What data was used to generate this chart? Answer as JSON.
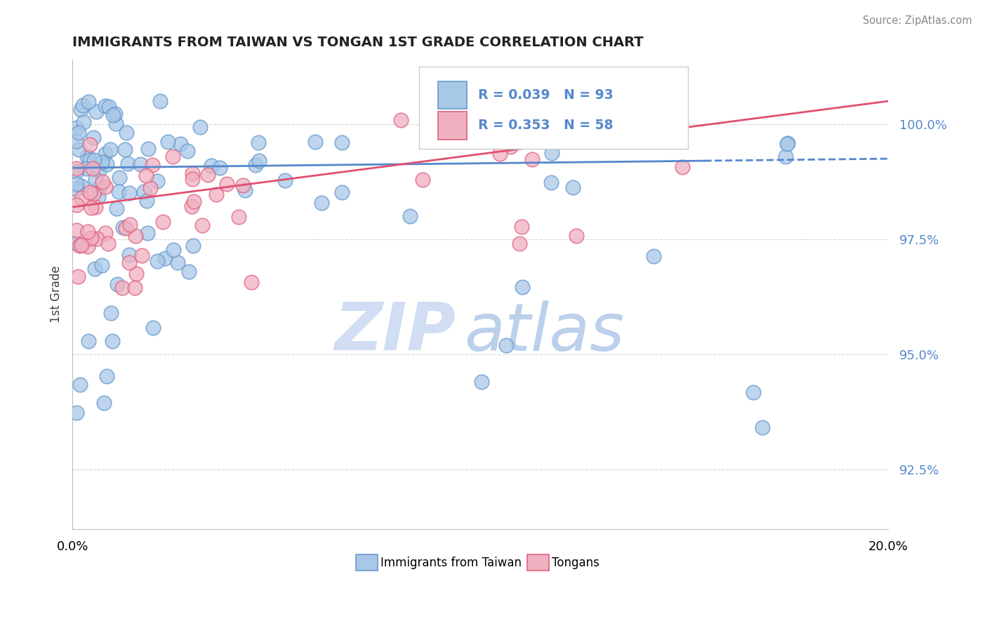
{
  "title": "IMMIGRANTS FROM TAIWAN VS TONGAN 1ST GRADE CORRELATION CHART",
  "source": "Source: ZipAtlas.com",
  "ylabel": "1st Grade",
  "y_ticks": [
    92.5,
    95.0,
    97.5,
    100.0
  ],
  "y_tick_labels": [
    "92.5%",
    "95.0%",
    "97.5%",
    "100.0%"
  ],
  "x_min": 0.0,
  "x_max": 0.2,
  "y_min": 91.2,
  "y_max": 101.4,
  "taiwan_R": 0.039,
  "taiwan_N": 93,
  "tongan_R": 0.353,
  "tongan_N": 58,
  "taiwan_color": "#a8c8e8",
  "tongan_color": "#f0b0c0",
  "taiwan_edge_color": "#6699cc",
  "tongan_edge_color": "#e06080",
  "taiwan_line_color": "#5588cc",
  "tongan_line_color": "#e05070",
  "legend_taiwan_label": "Immigrants from Taiwan",
  "legend_tongan_label": "Tongans",
  "watermark_zip": "ZIP",
  "watermark_atlas": "atlas",
  "watermark_color_zip": "#c8d8ee",
  "watermark_color_atlas": "#b8cce0",
  "background_color": "#ffffff",
  "grid_color": "#cccccc",
  "axis_label_color": "#5588cc",
  "title_color": "#222222",
  "source_color": "#888888"
}
